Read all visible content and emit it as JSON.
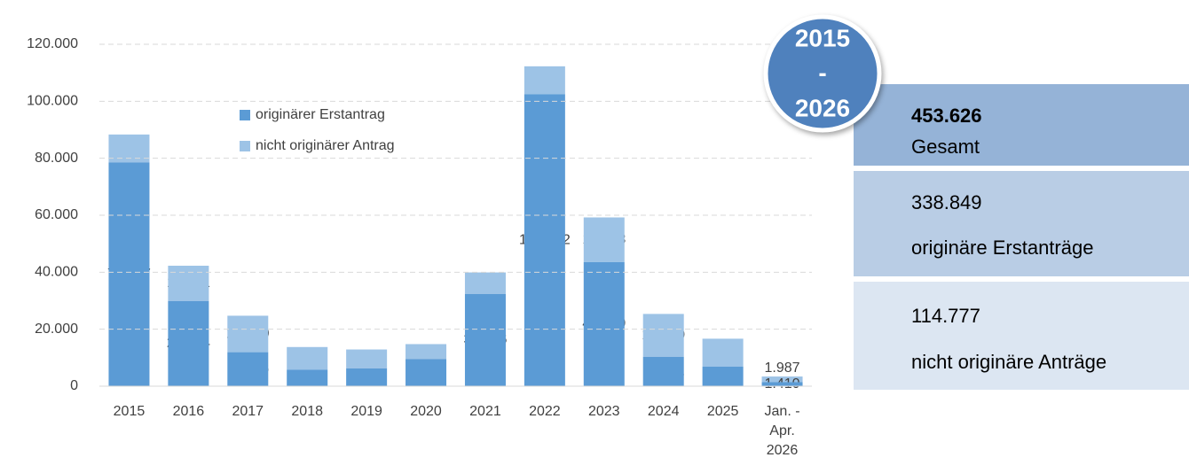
{
  "chart_data": {
    "type": "stacked-bar",
    "categories": [
      "2015",
      "2016",
      "2017",
      "2018",
      "2019",
      "2020",
      "2021",
      "2022",
      "2023",
      "2024",
      "2025",
      "Jan. - Apr. 2026"
    ],
    "series": [
      {
        "name": "originärer Erstantrag",
        "color": "#5b9bd5",
        "values": [
          78537,
          29864,
          11926,
          5800,
          6237,
          9486,
          32376,
          102452,
          43549,
          10311,
          6901,
          1410
        ],
        "value_labels": [
          "78.537",
          "29.864",
          "11.926",
          "5.800",
          "6.237",
          "9.486",
          "32.376",
          "102.452",
          "43.549",
          "10.311",
          "6.901",
          "1.410"
        ]
      },
      {
        "name": "nicht originärer Antrag",
        "color": "#9dc3e6",
        "values": [
          9803,
          12421,
          12809,
          7946,
          6649,
          5289,
          7554,
          9820,
          15683,
          15049,
          9767,
          1987
        ],
        "value_labels": [
          "9.803",
          "12.421",
          "12.809",
          "7.946",
          "6.649",
          "5.289",
          "7.554",
          "9.820",
          "15.683",
          "15.049",
          "9.767",
          "1.987"
        ]
      }
    ],
    "ylim": [
      0,
      120000
    ],
    "yticks": [
      0,
      {
        "value": 20000,
        "label": "20.000"
      },
      {
        "value": 40000,
        "label": "40.000"
      },
      {
        "value": 60000,
        "label": "60.000"
      },
      {
        "value": 80000,
        "label": "80.000"
      },
      {
        "value": 100000,
        "label": "100.000"
      },
      {
        "value": 120000,
        "label": "120.000"
      }
    ],
    "grid": true
  },
  "summary": {
    "badge": [
      "2015",
      "-",
      "2026"
    ],
    "boxes": [
      {
        "value": "453.626",
        "label": "Gesamt"
      },
      {
        "value": "338.849",
        "label": "originäre Erstanträge"
      },
      {
        "value": "114.777",
        "label": "nicht originäre Anträge"
      }
    ]
  }
}
